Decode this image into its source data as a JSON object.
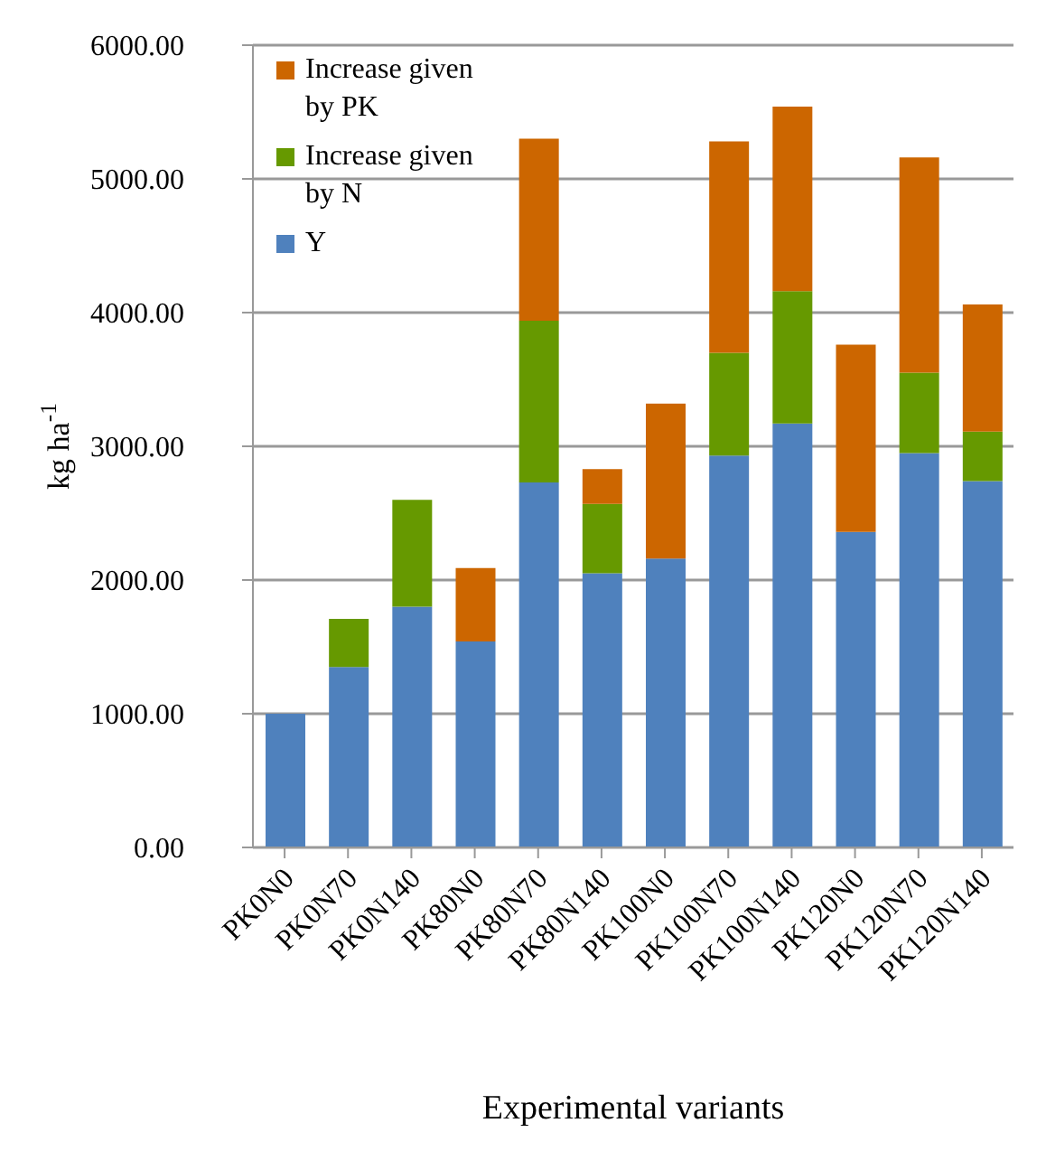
{
  "chart_data": {
    "type": "bar",
    "stacked": true,
    "xlabel": "Experimental variants",
    "ylabel": "kg ha$^{-1}$",
    "categories": [
      "PK0N0",
      "PK0N70",
      "PK0N140",
      "PK80N0",
      "PK80N70",
      "PK80N140",
      "PK100N0",
      "PK100N70",
      "PK100N140",
      "PK120N0",
      "PK120N70",
      "PK120N140"
    ],
    "series": [
      {
        "name": "Y",
        "color": "#4f81bd",
        "values": [
          1000,
          1350,
          1800,
          1540,
          2730,
          2050,
          2160,
          2930,
          3170,
          2360,
          2950,
          2740
        ]
      },
      {
        "name": "Increase given by N",
        "color": "#669900",
        "values": [
          null,
          360,
          800,
          null,
          1210,
          520,
          null,
          770,
          990,
          null,
          600,
          370
        ]
      },
      {
        "name": "Increase given by PK",
        "color": "#cc6600",
        "values": [
          null,
          null,
          null,
          550,
          1360,
          260,
          1160,
          1580,
          1380,
          1400,
          1610,
          950
        ]
      }
    ],
    "ylim": [
      0,
      6000
    ],
    "yticks": [
      {
        "value": 0,
        "label": "0.00"
      },
      {
        "value": 1000,
        "label": "1000.00"
      },
      {
        "value": 2000,
        "label": "2000.00"
      },
      {
        "value": 3000,
        "label": "3000.00"
      },
      {
        "value": 4000,
        "label": "4000.00"
      },
      {
        "value": 5000,
        "label": "5000.00"
      },
      {
        "value": 6000,
        "label": "6000.00"
      }
    ],
    "grid": "y",
    "legend": "top left"
  }
}
